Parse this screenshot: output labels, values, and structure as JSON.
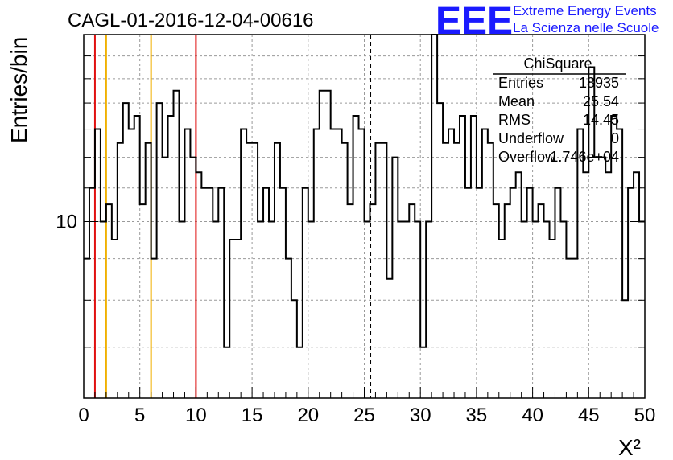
{
  "header": {
    "run_title": "CAGL-01-2016-12-04-00616",
    "logo": "EEE",
    "logo_line1": "Extreme Energy Events",
    "logo_line2": "La Scienza nelle Scuole"
  },
  "stats_box": {
    "name": "ChiSquare",
    "rows": [
      {
        "label": "Entries",
        "value": "18935"
      },
      {
        "label": "Mean",
        "value": "25.54"
      },
      {
        "label": "RMS",
        "value": "14.45"
      },
      {
        "label": "Underflow",
        "value": "0"
      },
      {
        "label": "Overflow",
        "value": "1.746e+04"
      }
    ]
  },
  "chart_data": {
    "type": "histogram",
    "title": "CAGL-01-2016-12-04-00616",
    "xlabel": "X²",
    "ylabel": "Entries/bin",
    "xlim": [
      0,
      50
    ],
    "y_scale": "log",
    "ylim": [
      6.06,
      17.0
    ],
    "x_ticks": [
      0,
      5,
      10,
      15,
      20,
      25,
      30,
      35,
      40,
      45,
      50
    ],
    "y_tick_labels": [
      {
        "value": 10,
        "label": "10"
      }
    ],
    "grid": true,
    "bin_width": 0.5,
    "values": [
      9,
      11,
      13,
      10,
      10.5,
      9.5,
      12.5,
      14,
      13,
      13.5,
      10.5,
      12.5,
      9,
      14,
      12,
      13.5,
      14.5,
      10,
      13,
      12,
      11.5,
      11,
      11,
      10,
      11,
      7,
      9.5,
      9.5,
      13,
      12.5,
      12.5,
      10,
      11,
      10,
      12.5,
      11,
      9,
      8,
      7,
      11,
      10,
      13,
      14.5,
      14.5,
      13,
      13,
      12.5,
      10.5,
      13.5,
      13,
      10,
      10.5,
      12.5,
      12.5,
      8.5,
      12,
      10,
      10,
      10.5,
      10,
      7,
      10,
      17,
      14,
      12.5,
      13,
      12.5,
      13.5,
      11,
      13.5,
      11,
      13,
      12.5,
      10.5,
      9.5,
      10.5,
      11,
      11.5,
      10,
      11,
      10,
      10.5,
      10,
      9.5,
      11,
      10,
      9,
      9,
      13,
      11.5,
      15.5,
      12,
      12,
      11.5,
      13.5,
      13,
      8,
      11,
      11.5,
      10
    ],
    "threshold_lines": [
      {
        "x": 1,
        "color": "#e01010"
      },
      {
        "x": 2,
        "color": "#f0b000"
      },
      {
        "x": 6,
        "color": "#f0b000"
      },
      {
        "x": 10,
        "color": "#e01010"
      },
      {
        "x": 25.54,
        "color": "#000000",
        "style": "dashed"
      }
    ]
  },
  "colors": {
    "histogram": "#000000",
    "grid": "#9a9a9a",
    "logo": "#1a1aff"
  }
}
